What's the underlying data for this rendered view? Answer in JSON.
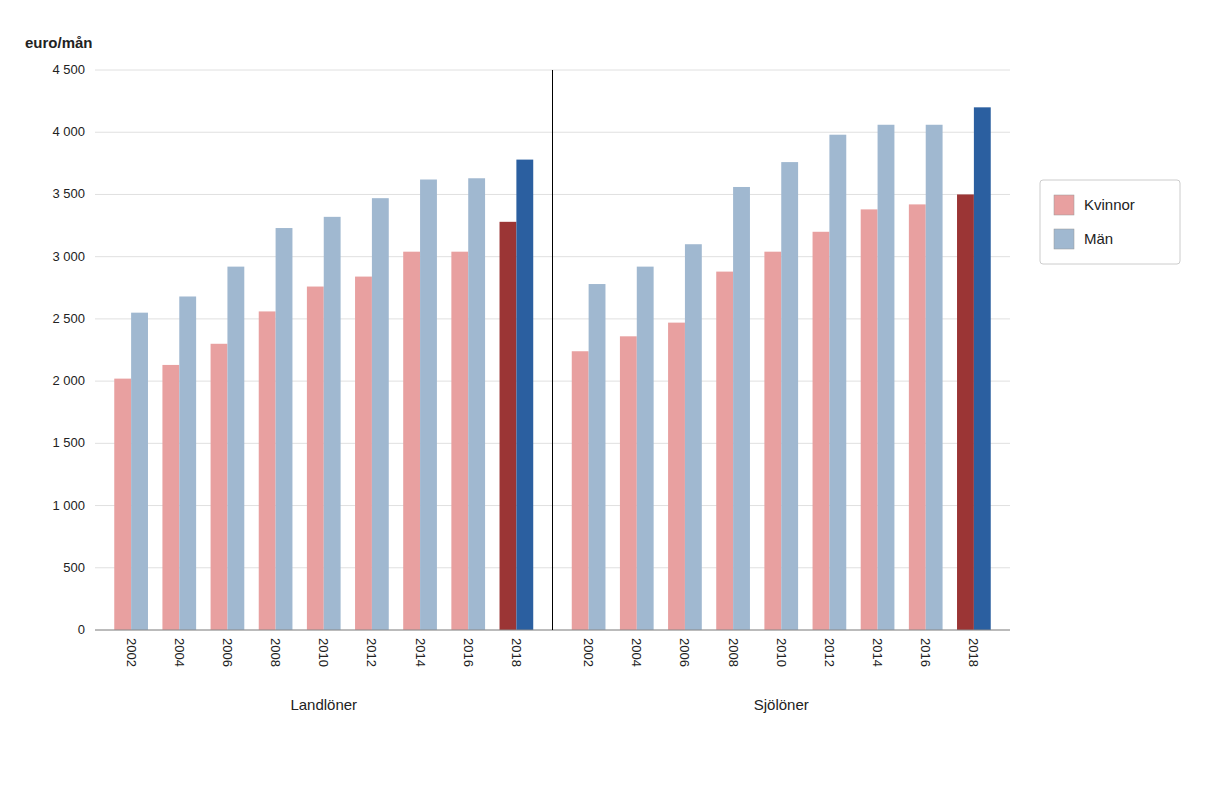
{
  "chart_data": {
    "type": "bar",
    "ylabel": "euro/mån",
    "groups": [
      {
        "label": "Landlöner",
        "categories": [
          "2002",
          "2004",
          "2006",
          "2008",
          "2010",
          "2012",
          "2014",
          "2016",
          "2018"
        ]
      },
      {
        "label": "Sjölöner",
        "categories": [
          "2002",
          "2004",
          "2006",
          "2008",
          "2010",
          "2012",
          "2014",
          "2016",
          "2018"
        ]
      }
    ],
    "series": [
      {
        "name": "Kvinnor",
        "color": "#E8A0A0",
        "colors": [
          "#E8A0A0",
          "#E8A0A0",
          "#E8A0A0",
          "#E8A0A0",
          "#E8A0A0",
          "#E8A0A0",
          "#E8A0A0",
          "#E8A0A0",
          "#9B3535",
          "#E8A0A0",
          "#E8A0A0",
          "#E8A0A0",
          "#E8A0A0",
          "#E8A0A0",
          "#E8A0A0",
          "#E8A0A0",
          "#E8A0A0",
          "#9B3535"
        ],
        "values": [
          2020,
          2130,
          2300,
          2560,
          2760,
          2840,
          3040,
          3040,
          3280,
          2240,
          2360,
          2470,
          2880,
          3040,
          3200,
          3380,
          3420,
          3500
        ]
      },
      {
        "name": "Män",
        "color": "#A0B8D0",
        "colors": [
          "#A0B8D0",
          "#A0B8D0",
          "#A0B8D0",
          "#A0B8D0",
          "#A0B8D0",
          "#A0B8D0",
          "#A0B8D0",
          "#A0B8D0",
          "#2B5FA0",
          "#A0B8D0",
          "#A0B8D0",
          "#A0B8D0",
          "#A0B8D0",
          "#A0B8D0",
          "#A0B8D0",
          "#A0B8D0",
          "#A0B8D0",
          "#2B5FA0"
        ],
        "values": [
          2550,
          2680,
          2920,
          3230,
          3320,
          3470,
          3620,
          3630,
          3780,
          2780,
          2920,
          3100,
          3560,
          3760,
          3980,
          4060,
          4060,
          4200
        ]
      }
    ],
    "ylim": [
      0,
      4500
    ],
    "yticks": [
      0,
      500,
      {
        "value": 1000,
        "label": "1 000"
      },
      {
        "value": 1500,
        "label": "1 500"
      },
      {
        "value": 2000,
        "label": "2 000"
      },
      {
        "value": 2500,
        "label": "2 500"
      },
      {
        "value": 3000,
        "label": "3 000"
      },
      {
        "value": 3500,
        "label": "3 500"
      },
      {
        "value": 4000,
        "label": "4 000"
      },
      {
        "value": 4500,
        "label": "4 500"
      }
    ],
    "grid": true,
    "legend": "right"
  }
}
